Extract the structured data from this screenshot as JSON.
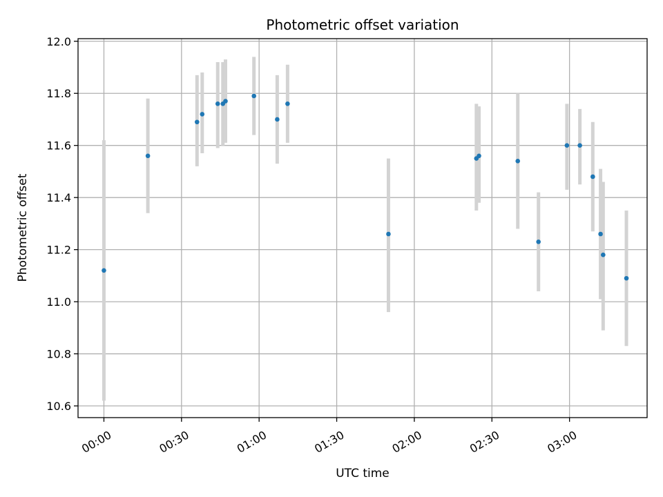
{
  "chart_data": {
    "type": "scatter",
    "title": "Photometric offset variation",
    "xlabel": "UTC time",
    "ylabel": "Photometric offset",
    "xlim": [
      "23:50",
      "03:30"
    ],
    "ylim": [
      10.555,
      12.01
    ],
    "x_ticks": [
      "00:00",
      "00:30",
      "01:00",
      "01:30",
      "02:00",
      "02:30",
      "03:00"
    ],
    "y_ticks": [
      10.6,
      10.8,
      11.0,
      11.2,
      11.4,
      11.6,
      11.8,
      12.0
    ],
    "y_tick_labels": [
      "10.6",
      "10.8",
      "11.0",
      "11.2",
      "11.4",
      "11.6",
      "11.8",
      "12.0"
    ],
    "grid": true,
    "error_bar_color": "#d3d3d3",
    "marker_color": "#1f77b4",
    "series": [
      {
        "points": [
          {
            "x": "00:00",
            "y": 11.12,
            "lo": 10.62,
            "hi": 11.62
          },
          {
            "x": "00:17",
            "y": 11.56,
            "lo": 11.34,
            "hi": 11.78
          },
          {
            "x": "00:36",
            "y": 11.69,
            "lo": 11.52,
            "hi": 11.87
          },
          {
            "x": "00:38",
            "y": 11.72,
            "lo": 11.57,
            "hi": 11.88
          },
          {
            "x": "00:44",
            "y": 11.76,
            "lo": 11.59,
            "hi": 11.92
          },
          {
            "x": "00:46",
            "y": 11.76,
            "lo": 11.6,
            "hi": 11.92
          },
          {
            "x": "00:47",
            "y": 11.77,
            "lo": 11.61,
            "hi": 11.93
          },
          {
            "x": "00:58",
            "y": 11.79,
            "lo": 11.64,
            "hi": 11.94
          },
          {
            "x": "01:07",
            "y": 11.7,
            "lo": 11.53,
            "hi": 11.87
          },
          {
            "x": "01:11",
            "y": 11.76,
            "lo": 11.61,
            "hi": 11.91
          },
          {
            "x": "01:50",
            "y": 11.26,
            "lo": 10.96,
            "hi": 11.55
          },
          {
            "x": "02:24",
            "y": 11.55,
            "lo": 11.35,
            "hi": 11.76
          },
          {
            "x": "02:25",
            "y": 11.56,
            "lo": 11.38,
            "hi": 11.75
          },
          {
            "x": "02:40",
            "y": 11.54,
            "lo": 11.28,
            "hi": 11.8
          },
          {
            "x": "02:48",
            "y": 11.23,
            "lo": 11.04,
            "hi": 11.42
          },
          {
            "x": "02:59",
            "y": 11.6,
            "lo": 11.43,
            "hi": 11.76
          },
          {
            "x": "03:04",
            "y": 11.6,
            "lo": 11.45,
            "hi": 11.74
          },
          {
            "x": "03:09",
            "y": 11.48,
            "lo": 11.27,
            "hi": 11.69
          },
          {
            "x": "03:12",
            "y": 11.26,
            "lo": 11.01,
            "hi": 11.51
          },
          {
            "x": "03:13",
            "y": 11.18,
            "lo": 10.89,
            "hi": 11.46
          },
          {
            "x": "03:22",
            "y": 11.09,
            "lo": 10.83,
            "hi": 11.35
          }
        ]
      }
    ]
  }
}
